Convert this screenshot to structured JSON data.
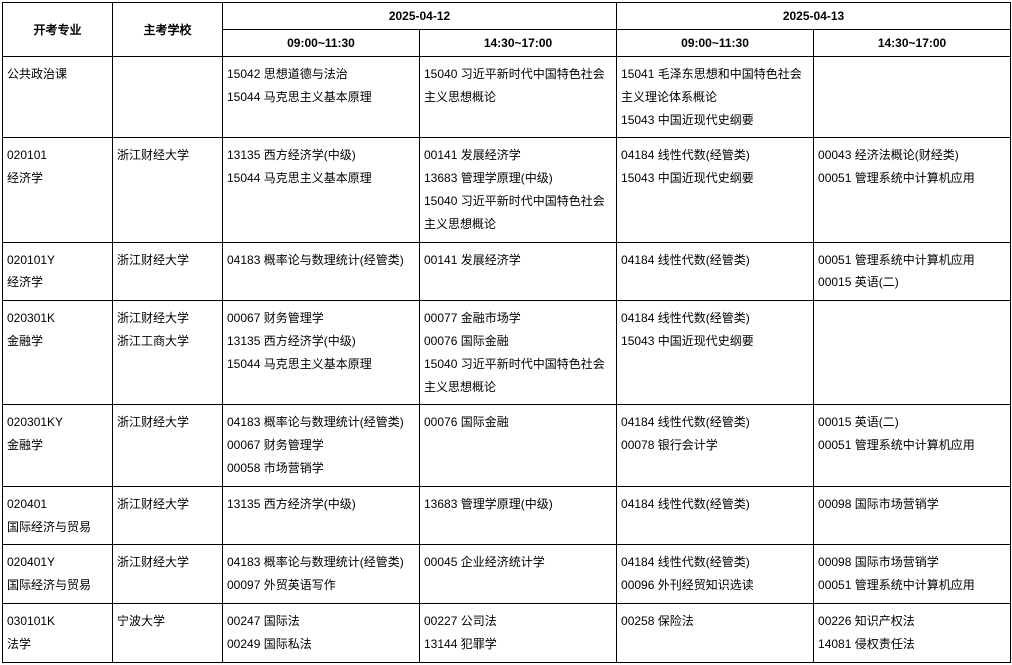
{
  "headers": {
    "major": "开考专业",
    "school": "主考学校",
    "date1": "2025-04-12",
    "date2": "2025-04-13",
    "slot1": "09:00~11:30",
    "slot2": "14:30~17:00",
    "slot3": "09:00~11:30",
    "slot4": "14:30~17:00"
  },
  "rows": [
    {
      "major": [
        "公共政治课"
      ],
      "school": [],
      "s1": [
        "15042 思想道德与法治",
        "15044 马克思主义基本原理"
      ],
      "s2": [
        "15040 习近平新时代中国特色社会主义思想概论"
      ],
      "s3": [
        "15041 毛泽东思想和中国特色社会主义理论体系概论",
        "15043 中国近现代史纲要"
      ],
      "s4": []
    },
    {
      "major": [
        "020101",
        "经济学"
      ],
      "school": [
        "浙江财经大学"
      ],
      "s1": [
        "13135 西方经济学(中级)",
        "15044  马克思主义基本原理"
      ],
      "s2": [
        "00141 发展经济学",
        "13683 管理学原理(中级)",
        "15040 习近平新时代中国特色社会主义思想概论"
      ],
      "s3": [
        "04184 线性代数(经管类)",
        "15043  中国近现代史纲要"
      ],
      "s4": [
        "00043 经济法概论(财经类)",
        "00051 管理系统中计算机应用"
      ]
    },
    {
      "major": [
        "020101Y",
        "经济学"
      ],
      "school": [
        "浙江财经大学"
      ],
      "s1": [
        "04183 概率论与数理统计(经管类)"
      ],
      "s2": [
        "00141 发展经济学"
      ],
      "s3": [
        "04184 线性代数(经管类)"
      ],
      "s4": [
        "00051 管理系统中计算机应用",
        "00015 英语(二)"
      ]
    },
    {
      "major": [
        "020301K",
        "金融学"
      ],
      "school": [
        "浙江财经大学",
        "浙江工商大学"
      ],
      "s1": [
        "00067 财务管理学",
        "13135 西方经济学(中级)",
        "15044 马克思主义基本原理"
      ],
      "s2": [
        "00077 金融市场学",
        "00076 国际金融",
        "15040 习近平新时代中国特色社会主义思想概论"
      ],
      "s3": [
        "04184 线性代数(经管类)",
        "15043 中国近现代史纲要"
      ],
      "s4": []
    },
    {
      "major": [
        "020301KY",
        "金融学"
      ],
      "school": [
        "浙江财经大学"
      ],
      "s1": [
        "04183 概率论与数理统计(经管类)",
        "00067 财务管理学",
        "00058 市场营销学"
      ],
      "s2": [
        "00076 国际金融"
      ],
      "s3": [
        "04184 线性代数(经管类)",
        "00078  银行会计学"
      ],
      "s4": [
        "00015 英语(二)",
        "00051 管理系统中计算机应用"
      ]
    },
    {
      "major": [
        "020401",
        "国际经济与贸易"
      ],
      "school": [
        "浙江财经大学"
      ],
      "s1": [
        "13135 西方经济学(中级)"
      ],
      "s2": [
        "13683 管理学原理(中级)"
      ],
      "s3": [
        "04184 线性代数(经管类)"
      ],
      "s4": [
        "00098 国际市场营销学"
      ]
    },
    {
      "major": [
        "020401Y",
        "国际经济与贸易"
      ],
      "school": [
        "浙江财经大学"
      ],
      "s1": [
        "04183 概率论与数理统计(经管类)",
        "00097 外贸英语写作"
      ],
      "s2": [
        "00045 企业经济统计学"
      ],
      "s3": [
        "04184 线性代数(经管类)",
        "00096 外刊经贸知识选读"
      ],
      "s4": [
        "00098 国际市场营销学",
        "00051 管理系统中计算机应用"
      ]
    },
    {
      "major": [
        "030101K",
        "法学"
      ],
      "school": [
        "宁波大学"
      ],
      "s1": [
        "00247  国际法",
        "00249  国际私法"
      ],
      "s2": [
        "00227  公司法",
        "13144  犯罪学"
      ],
      "s3": [
        "00258  保险法"
      ],
      "s4": [
        "00226  知识产权法",
        "14081  侵权责任法"
      ]
    }
  ]
}
